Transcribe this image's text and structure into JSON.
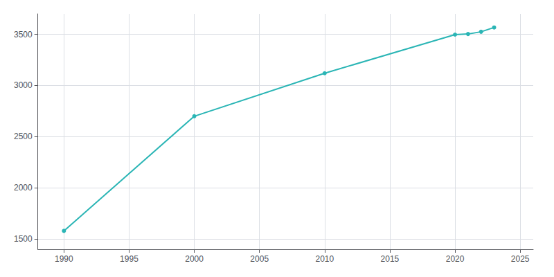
{
  "chart_data": {
    "type": "line",
    "x": [
      1990,
      2000,
      2010,
      2020,
      2021,
      2022,
      2023
    ],
    "values": [
      1580,
      2700,
      3120,
      3497,
      3503,
      3525,
      3567
    ],
    "color": "#2ab5b5",
    "marker": "circle",
    "xlim": [
      1988,
      2026
    ],
    "xticks": [
      1990,
      1995,
      2000,
      2005,
      2010,
      2015,
      2020,
      2025
    ],
    "ylim": [
      1400,
      3700
    ],
    "yticks": [
      1500,
      2000,
      2500,
      3000,
      3500
    ],
    "grid": true
  }
}
